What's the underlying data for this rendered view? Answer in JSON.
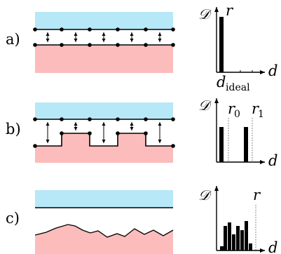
{
  "panels": [
    {
      "label": "a)",
      "chart": {
        "y_axis": "𝒟",
        "x_axis": "d",
        "markers": [
          {
            "text": "r",
            "sub": ""
          },
          {
            "text": "d",
            "sub": "ideal"
          }
        ]
      }
    },
    {
      "label": "b)",
      "chart": {
        "y_axis": "𝒟",
        "x_axis": "d",
        "markers": [
          {
            "text": "r",
            "sub": "0"
          },
          {
            "text": "r",
            "sub": "1"
          }
        ]
      }
    },
    {
      "label": "c)",
      "chart": {
        "y_axis": "𝒟",
        "x_axis": "d",
        "markers": [
          {
            "text": "r",
            "sub": ""
          }
        ]
      }
    }
  ],
  "colors": {
    "top_region": "#b7e8f7",
    "bottom_region": "#fdbcbc",
    "stroke": "#000000"
  }
}
